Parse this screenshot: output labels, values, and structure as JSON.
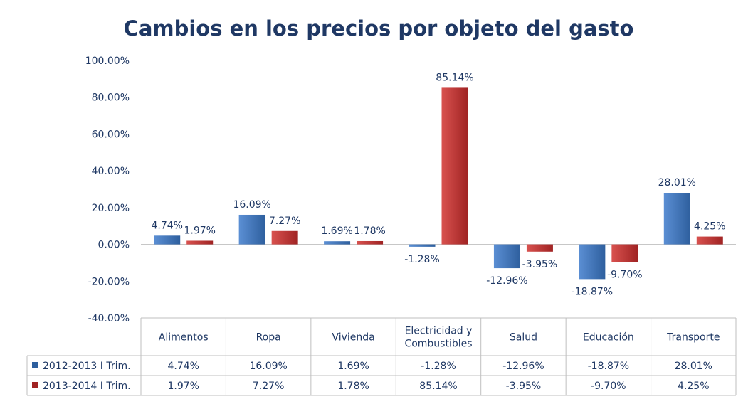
{
  "colors": {
    "series1_light": "#5b8fd4",
    "series1_dark": "#2e5f9e",
    "series2_light": "#d9524f",
    "series2_dark": "#a02323",
    "text": "#1f3864",
    "table_border": "#bfbfbf",
    "axis": "#bfbfbf"
  },
  "chart_data": {
    "type": "bar",
    "title": "Cambios en los precios por objeto del gasto",
    "categories": [
      "Alimentos",
      "Ropa",
      "Vivienda",
      "Electricidad y Combustibles",
      "Salud",
      "Educación",
      "Transporte"
    ],
    "category_lines": [
      [
        "Alimentos"
      ],
      [
        "Ropa"
      ],
      [
        "Vivienda"
      ],
      [
        "Electricidad y",
        "Combustibles"
      ],
      [
        "Salud"
      ],
      [
        "Educación"
      ],
      [
        "Transporte"
      ]
    ],
    "ylim": [
      -40,
      100
    ],
    "yticks": [
      100,
      80,
      60,
      40,
      20,
      0,
      -20,
      -40
    ],
    "ytick_labels": [
      "100.00%",
      "80.00%",
      "60.00%",
      "40.00%",
      "20.00%",
      "0.00%",
      "-20.00%",
      "-40.00%"
    ],
    "series": [
      {
        "name": "2012-2013 I Trim.",
        "values": [
          4.74,
          16.09,
          1.69,
          -1.28,
          -12.96,
          -18.87,
          28.01
        ],
        "labels": [
          "4.74%",
          "16.09%",
          "1.69%",
          "-1.28%",
          "-12.96%",
          "-18.87%",
          "28.01%"
        ]
      },
      {
        "name": "2013-2014 I Trim.",
        "values": [
          1.97,
          7.27,
          1.78,
          85.14,
          -3.95,
          -9.7,
          4.25
        ],
        "labels": [
          "1.97%",
          "7.27%",
          "1.78%",
          "85.14%",
          "-3.95%",
          "-9.70%",
          "4.25%"
        ]
      }
    ],
    "data_table": true
  }
}
